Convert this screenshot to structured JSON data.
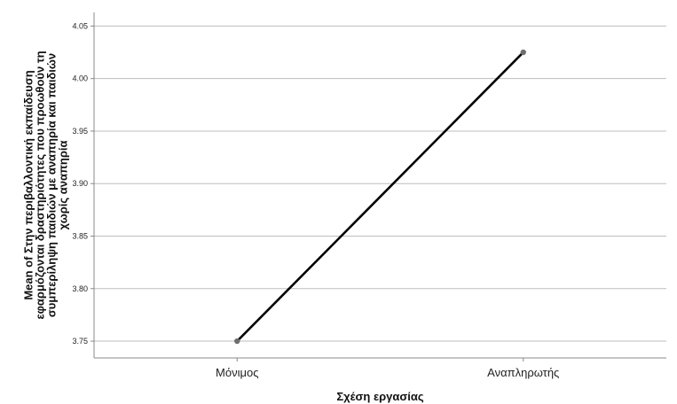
{
  "chart_data": {
    "type": "line",
    "categories": [
      "Μόνιμος",
      "Αναπληρωτής"
    ],
    "series": [
      {
        "values": [
          3.75,
          4.025
        ]
      }
    ],
    "xlabel": "Σχέση εργασίας",
    "ylabel_lines": [
      "Mean of Στην περιβαλλοντική εκπαίδευση",
      "εφαρμόζονται δραστηριότητες που προωθούν τη",
      "συμπερίληψη παιδιών με αναπηρία και παιδιών",
      "χωρίς αναπηρία"
    ],
    "ylim": [
      3.734,
      4.063
    ],
    "yticks": [
      "3.75",
      "3.80",
      "3.85",
      "3.90",
      "3.95",
      "4.00",
      "4.05"
    ],
    "grid": true,
    "colors": {
      "line": "#000000",
      "marker": "#6e6e6e",
      "grid": "#bdbdbd",
      "axis": "#888888"
    }
  }
}
